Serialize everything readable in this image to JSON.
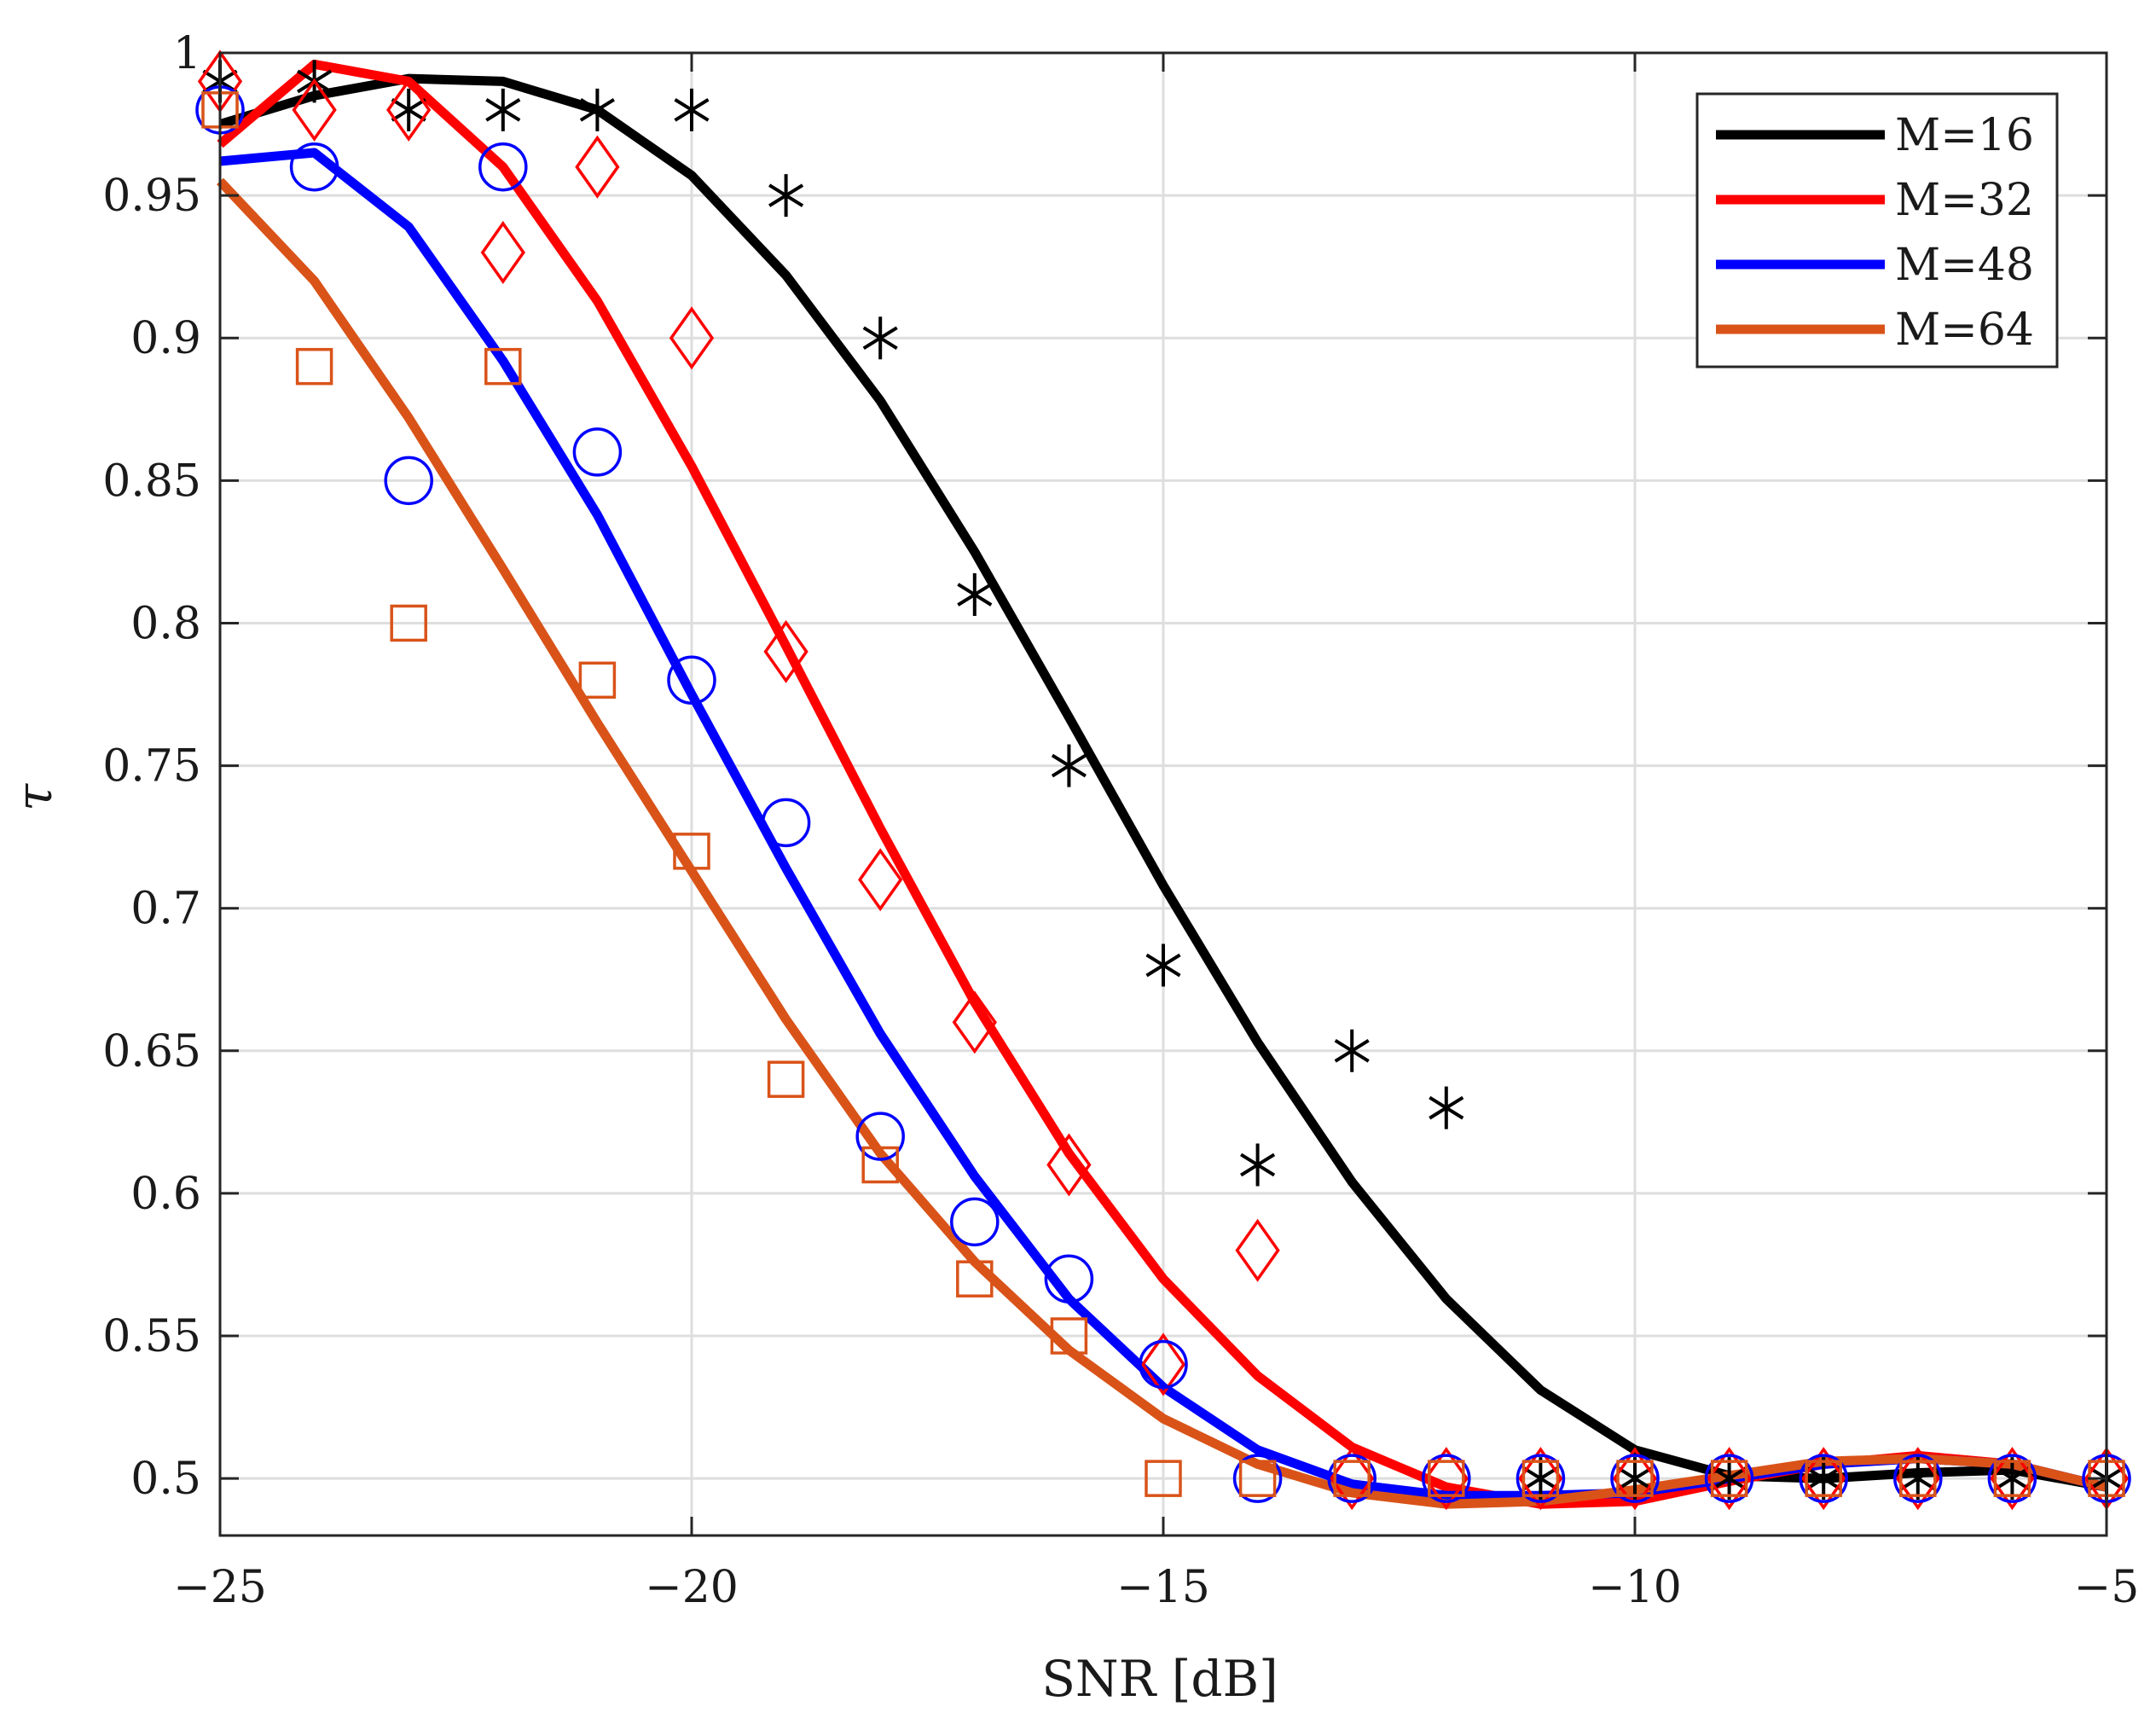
{
  "chart_data": {
    "type": "line",
    "title": "",
    "xlabel": "SNR [dB]",
    "ylabel": "τ",
    "xlim": [
      -25,
      -5
    ],
    "ylim": [
      0.48,
      1.0
    ],
    "grid": true,
    "legend_position": "top-right",
    "xticks": [
      -25,
      -20,
      -15,
      -10,
      -5
    ],
    "xtick_labels": [
      "−25",
      "−20",
      "−15",
      "−10",
      "−5"
    ],
    "yticks": [
      0.5,
      0.55,
      0.6,
      0.65,
      0.7,
      0.75,
      0.8,
      0.85,
      0.9,
      0.95,
      1.0
    ],
    "ytick_labels": [
      "0.5",
      "0.55",
      "0.6",
      "0.65",
      "0.7",
      "0.75",
      "0.8",
      "0.85",
      "0.9",
      "0.95",
      "1"
    ],
    "x": [
      -25,
      -24,
      -23,
      -22,
      -21,
      -20,
      -19,
      -18,
      -17,
      -16,
      -15,
      -14,
      -13,
      -12,
      -11,
      -10,
      -9,
      -8,
      -7,
      -6,
      -5
    ],
    "series": [
      {
        "name": "M=16",
        "color": "#000000",
        "marker": "asterisk",
        "curve": [
          0.975,
          0.985,
          0.991,
          0.99,
          0.98,
          0.957,
          0.922,
          0.878,
          0.825,
          0.767,
          0.708,
          0.653,
          0.604,
          0.563,
          0.531,
          0.51,
          0.501,
          0.5,
          0.502,
          0.503,
          0.497
        ],
        "markers": [
          0.99,
          0.99,
          0.98,
          0.98,
          0.98,
          0.98,
          0.95,
          0.9,
          0.81,
          0.75,
          0.68,
          0.61,
          0.65,
          0.63,
          0.5,
          0.5,
          0.5,
          0.5,
          0.5,
          0.5,
          0.5
        ]
      },
      {
        "name": "M=32",
        "color": "#ff0000",
        "marker": "diamond",
        "curve": [
          0.968,
          0.996,
          0.99,
          0.96,
          0.913,
          0.855,
          0.792,
          0.728,
          0.667,
          0.614,
          0.57,
          0.536,
          0.511,
          0.497,
          0.491,
          0.492,
          0.499,
          0.505,
          0.508,
          0.505,
          0.497
        ],
        "markers": [
          0.99,
          0.98,
          0.98,
          0.93,
          0.96,
          0.9,
          0.79,
          0.71,
          0.66,
          0.61,
          0.54,
          0.58,
          0.5,
          0.5,
          0.5,
          0.5,
          0.5,
          0.5,
          0.5,
          0.5,
          0.5
        ]
      },
      {
        "name": "M=48",
        "color": "#0000ff",
        "marker": "circle",
        "curve": [
          0.962,
          0.965,
          0.939,
          0.892,
          0.838,
          0.775,
          0.714,
          0.656,
          0.606,
          0.563,
          0.532,
          0.51,
          0.498,
          0.494,
          0.494,
          0.495,
          0.5,
          0.505,
          0.507,
          0.505,
          0.497
        ],
        "markers": [
          0.98,
          0.96,
          0.85,
          0.96,
          0.86,
          0.78,
          0.73,
          0.62,
          0.59,
          0.57,
          0.54,
          0.5,
          0.5,
          0.5,
          0.5,
          0.5,
          0.5,
          0.5,
          0.5,
          0.5,
          0.5
        ]
      },
      {
        "name": "M=64",
        "color": "#d95319",
        "marker": "square",
        "curve": [
          0.955,
          0.92,
          0.872,
          0.819,
          0.765,
          0.713,
          0.661,
          0.614,
          0.576,
          0.545,
          0.521,
          0.505,
          0.495,
          0.491,
          0.492,
          0.496,
          0.501,
          0.506,
          0.507,
          0.505,
          0.497
        ],
        "markers": [
          0.98,
          0.89,
          0.8,
          0.89,
          0.78,
          0.72,
          0.64,
          0.61,
          0.57,
          0.55,
          0.5,
          0.5,
          0.5,
          0.5,
          0.5,
          0.5,
          0.5,
          0.5,
          0.5,
          0.5,
          0.5
        ]
      }
    ]
  }
}
